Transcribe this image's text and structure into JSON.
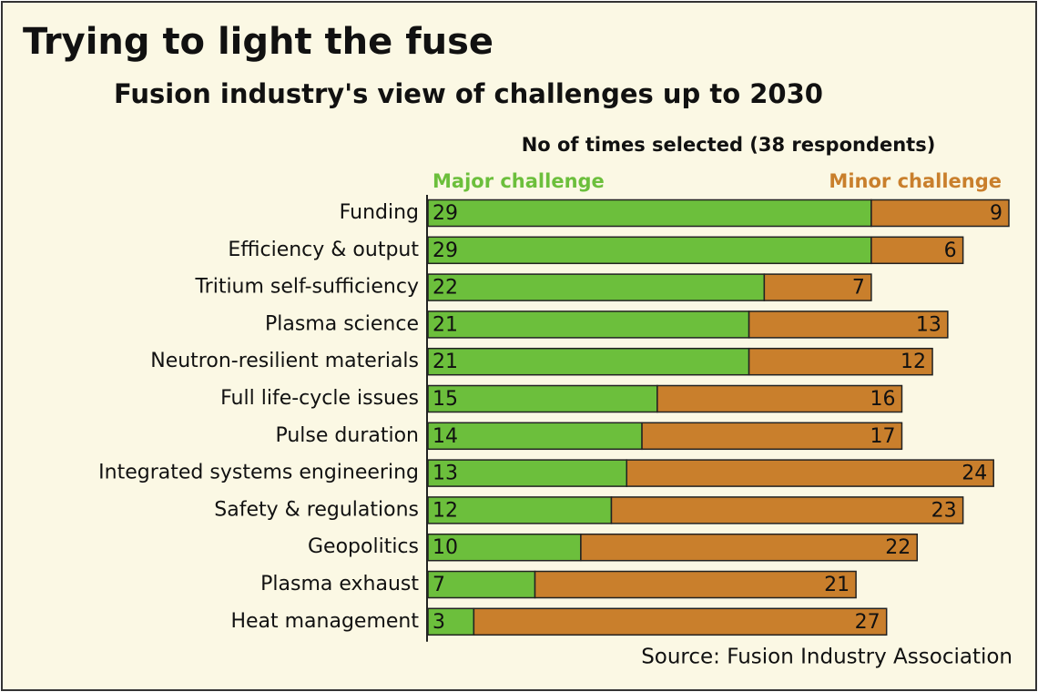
{
  "chart_data": {
    "type": "stacked-bar-horizontal",
    "title": "Trying to light the fuse",
    "subtitle": "Fusion industry's view of challenges up to 2030",
    "x_label": "No of times selected (38 respondents)",
    "source": "Source: Fusion Industry Association",
    "categories": [
      "Funding",
      "Efficiency & output",
      "Tritium self-sufficiency",
      "Plasma science",
      "Neutron-resilient materials",
      "Full life-cycle issues",
      "Pulse duration",
      "Integrated systems engineering",
      "Safety & regulations",
      "Geopolitics",
      "Plasma exhaust",
      "Heat management"
    ],
    "series": [
      {
        "name": "Major challenge",
        "color": "#6cbf3c",
        "values": [
          29,
          29,
          22,
          21,
          21,
          15,
          14,
          13,
          12,
          10,
          7,
          3
        ]
      },
      {
        "name": "Minor challenge",
        "color": "#c97f2c",
        "values": [
          9,
          6,
          7,
          13,
          12,
          16,
          17,
          24,
          23,
          22,
          21,
          27
        ]
      }
    ],
    "xlim": [
      0,
      38
    ]
  }
}
